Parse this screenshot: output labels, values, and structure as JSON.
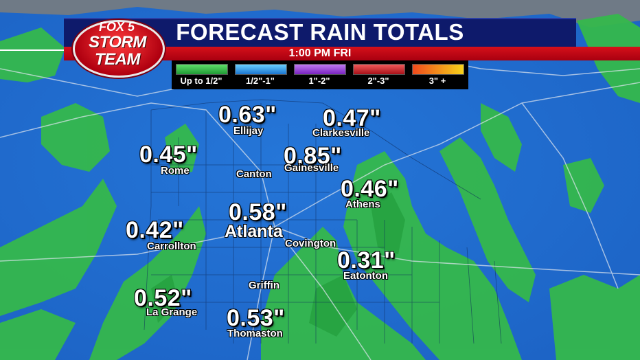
{
  "header": {
    "title": "FORECAST RAIN TOTALS",
    "timestamp": "1:00 PM FRI"
  },
  "logo": {
    "fox": "FOX 5",
    "storm": "STORM",
    "team": "TEAM"
  },
  "legend": [
    {
      "label": "Up to 1/2\"",
      "color": "#3cc24a"
    },
    {
      "label": "1/2\"-1\"",
      "color": "#2a9be0"
    },
    {
      "label": "1\"-2\"",
      "color": "#9b3fd8"
    },
    {
      "label": "2\"-3\"",
      "color": "#d4262a"
    },
    {
      "label": "3\" +",
      "color": "#f07a1c"
    }
  ],
  "locations": [
    {
      "value": "0.63\"",
      "city": "Ellijay"
    },
    {
      "value": "0.47\"",
      "city": "Clarkesville"
    },
    {
      "value": "0.45\"",
      "city": "Rome"
    },
    {
      "value": "",
      "city": "Canton"
    },
    {
      "value": "0.85\"",
      "city": "Gainesville"
    },
    {
      "value": "0.46\"",
      "city": "Athens"
    },
    {
      "value": "0.58\"",
      "city": "Atlanta"
    },
    {
      "value": "0.42\"",
      "city": "Carrollton"
    },
    {
      "value": "",
      "city": "Covington"
    },
    {
      "value": "0.31\"",
      "city": "Eatonton"
    },
    {
      "value": "",
      "city": "Griffin"
    },
    {
      "value": "0.52\"",
      "city": "La Grange"
    },
    {
      "value": "0.53\"",
      "city": "Thomaston"
    }
  ],
  "colors": {
    "deep_blue": "#1f5fc8",
    "light_blue": "#2f8be8",
    "green": "#2fb34a",
    "header_navy": "#0e1a6b",
    "header_red": "#c8101a"
  }
}
